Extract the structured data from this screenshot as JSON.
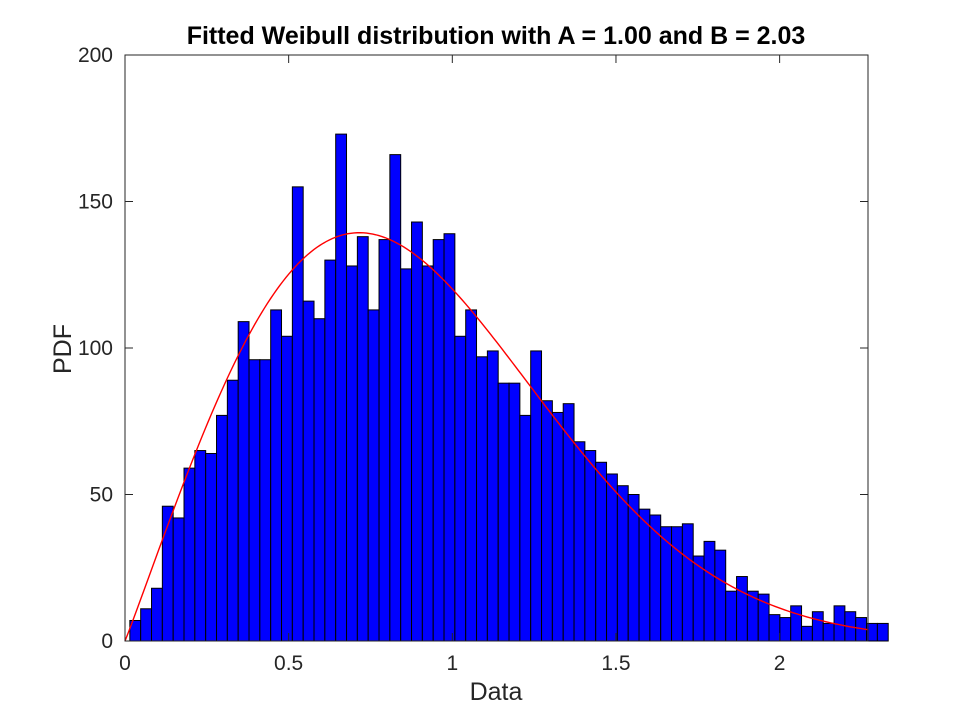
{
  "chart_data": {
    "type": "bar",
    "title": "Fitted Weibull distribution with A = 1.00 and B = 2.03",
    "xlabel": "Data",
    "ylabel": "PDF",
    "xlim": [
      0,
      2.27
    ],
    "ylim": [
      0,
      200
    ],
    "xticks": [
      "0",
      "0.5",
      "1",
      "1.5",
      "2"
    ],
    "xtick_values": [
      0,
      0.5,
      1,
      1.5,
      2
    ],
    "yticks": [
      "0",
      "50",
      "100",
      "150",
      "200"
    ],
    "ytick_values": [
      0,
      50,
      100,
      150,
      200
    ],
    "grid": false,
    "legend": "none",
    "bin_start": 0.0148,
    "bin_width": 0.0331,
    "values": [
      7,
      11,
      18,
      46,
      42,
      59,
      65,
      64,
      77,
      89,
      109,
      96,
      96,
      113,
      104,
      155,
      116,
      110,
      130,
      173,
      128,
      138,
      113,
      137,
      166,
      127,
      143,
      128,
      137,
      139,
      104,
      113,
      97,
      99,
      88,
      88,
      77,
      99,
      82,
      78,
      81,
      68,
      65,
      61,
      57,
      53,
      50,
      45,
      43,
      39,
      39,
      40,
      29,
      34,
      31,
      17,
      22,
      17,
      16,
      9,
      8,
      12,
      5,
      10,
      6,
      12,
      10,
      8,
      6,
      6
    ],
    "fit": {
      "distribution": "Weibull",
      "A": 1.0,
      "B": 2.03
    },
    "colors": {
      "bars": "#0000ff",
      "bar_edge": "#000000",
      "fit_line": "#ff0000",
      "axes": "#262626"
    }
  }
}
